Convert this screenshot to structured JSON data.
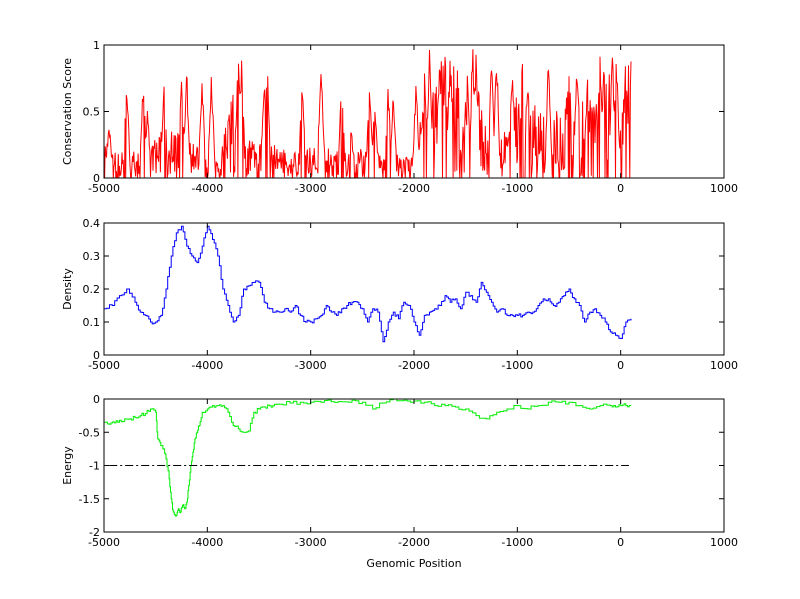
{
  "chart_data": [
    {
      "type": "line",
      "title": "",
      "xlabel": "",
      "ylabel": "Conservation Score",
      "xlim": [
        -5000,
        1000
      ],
      "ylim": [
        0,
        1
      ],
      "xticks": [
        -5000,
        -4000,
        -3000,
        -2000,
        -1000,
        0,
        1000
      ],
      "yticks": [
        0,
        0.5,
        1
      ],
      "xtick_labels": [
        "-5000",
        "-4000",
        "-3000",
        "-2000",
        "-1000",
        "0",
        "1000"
      ],
      "ytick_labels": [
        "0",
        "0.5",
        "1"
      ],
      "color": "#ff0000",
      "style": "noisy-spikes",
      "x": [
        -5000,
        -4850,
        -4700,
        -4600,
        -4450,
        -4300,
        -4150,
        -4000,
        -3850,
        -3750,
        -3700,
        -3650,
        -3500,
        -3400,
        -3250,
        -3100,
        -2950,
        -2850,
        -2700,
        -2550,
        -2450,
        -2300,
        -2200,
        -2100,
        -2000,
        -1950,
        -1800,
        -1700,
        -1600,
        -1500,
        -1450,
        -1350,
        -1250,
        -1100,
        -1000,
        -900,
        -800,
        -700,
        -600,
        -500,
        -400,
        -300,
        -250,
        -200,
        -150,
        -100,
        -50,
        0,
        50,
        100
      ],
      "y": [
        0.2,
        0.15,
        0.15,
        0.2,
        0.25,
        0.25,
        0.2,
        0.15,
        0.2,
        0.5,
        0.6,
        0.3,
        0.2,
        0.2,
        0.15,
        0.15,
        0.2,
        0.2,
        0.15,
        0.2,
        0.15,
        0.15,
        0.2,
        0.1,
        0.15,
        0.3,
        0.5,
        0.7,
        0.6,
        0.5,
        0.7,
        0.4,
        0.2,
        0.3,
        0.5,
        0.4,
        0.4,
        0.3,
        0.4,
        0.5,
        0.4,
        0.5,
        0.6,
        0.3,
        0.5,
        0.6,
        0.4,
        0.3,
        0.6,
        0.8
      ],
      "peaks": [
        [
          -4950,
          0.45
        ],
        [
          -4780,
          0.75
        ],
        [
          -4620,
          0.78
        ],
        [
          -4580,
          0.55
        ],
        [
          -4420,
          0.78
        ],
        [
          -4250,
          0.9
        ],
        [
          -4200,
          0.85
        ],
        [
          -4050,
          0.8
        ],
        [
          -3960,
          0.8
        ],
        [
          -3830,
          0.45
        ],
        [
          -3700,
          1
        ],
        [
          -3670,
          0.95
        ],
        [
          -3450,
          0.8
        ],
        [
          -3420,
          0.85
        ],
        [
          -3080,
          0.8
        ],
        [
          -2900,
          0.95
        ],
        [
          -2700,
          0.8
        ],
        [
          -2610,
          0.45
        ],
        [
          -2430,
          0.7
        ],
        [
          -2380,
          0.6
        ],
        [
          -2250,
          0.75
        ],
        [
          -2200,
          0.7
        ],
        [
          -1980,
          0.75
        ],
        [
          -1900,
          0.85
        ],
        [
          -1850,
          1
        ],
        [
          -1750,
          1
        ],
        [
          -1700,
          1
        ],
        [
          -1650,
          1
        ],
        [
          -1430,
          1
        ],
        [
          -1400,
          1
        ],
        [
          -1250,
          0.95
        ],
        [
          -1200,
          1
        ],
        [
          -1050,
          0.9
        ],
        [
          -950,
          1
        ],
        [
          -900,
          0.85
        ],
        [
          -700,
          0.95
        ],
        [
          -500,
          1
        ],
        [
          -420,
          0.95
        ],
        [
          -320,
          0.8
        ],
        [
          -200,
          1
        ],
        [
          -160,
          1
        ],
        [
          -80,
          1
        ],
        [
          -40,
          1
        ],
        [
          50,
          1
        ],
        [
          100,
          1
        ]
      ]
    },
    {
      "type": "line",
      "title": "",
      "xlabel": "",
      "ylabel": "Density",
      "xlim": [
        -5000,
        1000
      ],
      "ylim": [
        0,
        0.4
      ],
      "xticks": [
        -5000,
        -4000,
        -3000,
        -2000,
        -1000,
        0,
        1000
      ],
      "yticks": [
        0,
        0.1,
        0.2,
        0.3,
        0.4
      ],
      "xtick_labels": [
        "-5000",
        "-4000",
        "-3000",
        "-2000",
        "-1000",
        "0",
        "1000"
      ],
      "ytick_labels": [
        "0",
        "0.1",
        "0.2",
        "0.3",
        "0.4"
      ],
      "color": "#0000ff",
      "style": "step",
      "x": [
        -5000,
        -4920,
        -4850,
        -4780,
        -4700,
        -4650,
        -4600,
        -4550,
        -4500,
        -4450,
        -4400,
        -4350,
        -4300,
        -4250,
        -4200,
        -4150,
        -4100,
        -4050,
        -4000,
        -3950,
        -3900,
        -3850,
        -3800,
        -3750,
        -3700,
        -3650,
        -3600,
        -3550,
        -3500,
        -3450,
        -3400,
        -3350,
        -3300,
        -3250,
        -3200,
        -3150,
        -3100,
        -3050,
        -3000,
        -2950,
        -2900,
        -2850,
        -2800,
        -2750,
        -2700,
        -2650,
        -2600,
        -2550,
        -2500,
        -2450,
        -2400,
        -2350,
        -2300,
        -2250,
        -2200,
        -2150,
        -2100,
        -2050,
        -2000,
        -1950,
        -1900,
        -1850,
        -1800,
        -1750,
        -1700,
        -1650,
        -1600,
        -1550,
        -1500,
        -1450,
        -1400,
        -1350,
        -1300,
        -1250,
        -1200,
        -1150,
        -1100,
        -1050,
        -1000,
        -950,
        -900,
        -850,
        -800,
        -750,
        -700,
        -650,
        -600,
        -550,
        -500,
        -450,
        -400,
        -350,
        -300,
        -250,
        -200,
        -150,
        -100,
        -50,
        0,
        50,
        100
      ],
      "y": [
        0.14,
        0.15,
        0.18,
        0.2,
        0.16,
        0.13,
        0.12,
        0.1,
        0.1,
        0.12,
        0.2,
        0.3,
        0.37,
        0.39,
        0.33,
        0.3,
        0.28,
        0.33,
        0.39,
        0.35,
        0.3,
        0.2,
        0.15,
        0.1,
        0.12,
        0.2,
        0.21,
        0.22,
        0.22,
        0.16,
        0.14,
        0.13,
        0.13,
        0.14,
        0.13,
        0.15,
        0.12,
        0.1,
        0.1,
        0.11,
        0.12,
        0.15,
        0.13,
        0.12,
        0.14,
        0.15,
        0.16,
        0.16,
        0.14,
        0.1,
        0.14,
        0.13,
        0.04,
        0.1,
        0.13,
        0.11,
        0.16,
        0.15,
        0.1,
        0.06,
        0.12,
        0.13,
        0.14,
        0.15,
        0.18,
        0.16,
        0.17,
        0.14,
        0.19,
        0.18,
        0.16,
        0.22,
        0.19,
        0.16,
        0.13,
        0.14,
        0.12,
        0.12,
        0.12,
        0.12,
        0.13,
        0.13,
        0.15,
        0.17,
        0.17,
        0.15,
        0.16,
        0.18,
        0.2,
        0.17,
        0.15,
        0.1,
        0.13,
        0.14,
        0.12,
        0.1,
        0.07,
        0.06,
        0.05,
        0.1,
        0.11
      ]
    },
    {
      "type": "line",
      "title": "",
      "xlabel": "Genomic Position",
      "ylabel": "Energy",
      "xlim": [
        -5000,
        1000
      ],
      "ylim": [
        -2,
        0
      ],
      "xticks": [
        -5000,
        -4000,
        -3000,
        -2000,
        -1000,
        0,
        1000
      ],
      "yticks": [
        -2,
        -1.5,
        -1,
        -0.5,
        0
      ],
      "xtick_labels": [
        "-5000",
        "-4000",
        "-3000",
        "-2000",
        "-1000",
        "0",
        "1000"
      ],
      "ytick_labels": [
        "-2",
        "-1.5",
        "-1",
        "-0.5",
        "0"
      ],
      "color": "#00ee00",
      "style": "step",
      "threshold": {
        "y": -1,
        "x_range": [
          -4950,
          80
        ],
        "line_style": "dash-dot",
        "color": "#000000"
      },
      "x": [
        -5000,
        -4950,
        -4900,
        -4850,
        -4800,
        -4750,
        -4700,
        -4650,
        -4600,
        -4550,
        -4500,
        -4480,
        -4450,
        -4420,
        -4400,
        -4370,
        -4350,
        -4330,
        -4300,
        -4280,
        -4260,
        -4240,
        -4220,
        -4200,
        -4180,
        -4160,
        -4140,
        -4120,
        -4100,
        -4080,
        -4050,
        -4000,
        -3950,
        -3900,
        -3850,
        -3800,
        -3750,
        -3700,
        -3650,
        -3600,
        -3550,
        -3500,
        -3450,
        -3400,
        -3350,
        -3300,
        -3200,
        -3100,
        -3000,
        -2900,
        -2800,
        -2700,
        -2600,
        -2500,
        -2400,
        -2300,
        -2200,
        -2100,
        -2000,
        -1900,
        -1800,
        -1700,
        -1600,
        -1500,
        -1400,
        -1300,
        -1200,
        -1100,
        -1000,
        -900,
        -800,
        -700,
        -600,
        -500,
        -400,
        -300,
        -200,
        -100,
        -50,
        0,
        50,
        100
      ],
      "y": [
        -0.35,
        -0.38,
        -0.36,
        -0.32,
        -0.3,
        -0.3,
        -0.28,
        -0.25,
        -0.22,
        -0.15,
        -0.2,
        -0.6,
        -0.7,
        -0.75,
        -0.9,
        -1.2,
        -1.5,
        -1.7,
        -1.75,
        -1.65,
        -1.7,
        -1.6,
        -1.65,
        -1.55,
        -1.3,
        -1.0,
        -0.8,
        -0.6,
        -0.5,
        -0.4,
        -0.2,
        -0.15,
        -0.1,
        -0.1,
        -0.1,
        -0.2,
        -0.4,
        -0.45,
        -0.5,
        -0.48,
        -0.2,
        -0.15,
        -0.12,
        -0.1,
        -0.08,
        -0.08,
        -0.06,
        -0.05,
        -0.05,
        -0.05,
        -0.04,
        -0.04,
        -0.02,
        -0.05,
        -0.15,
        -0.06,
        0.0,
        -0.02,
        -0.03,
        -0.05,
        -0.1,
        -0.1,
        -0.12,
        -0.15,
        -0.25,
        -0.3,
        -0.2,
        -0.15,
        -0.1,
        -0.15,
        -0.1,
        -0.05,
        -0.05,
        -0.05,
        -0.1,
        -0.15,
        -0.1,
        -0.1,
        -0.12,
        -0.1,
        -0.1,
        -0.1
      ]
    }
  ]
}
